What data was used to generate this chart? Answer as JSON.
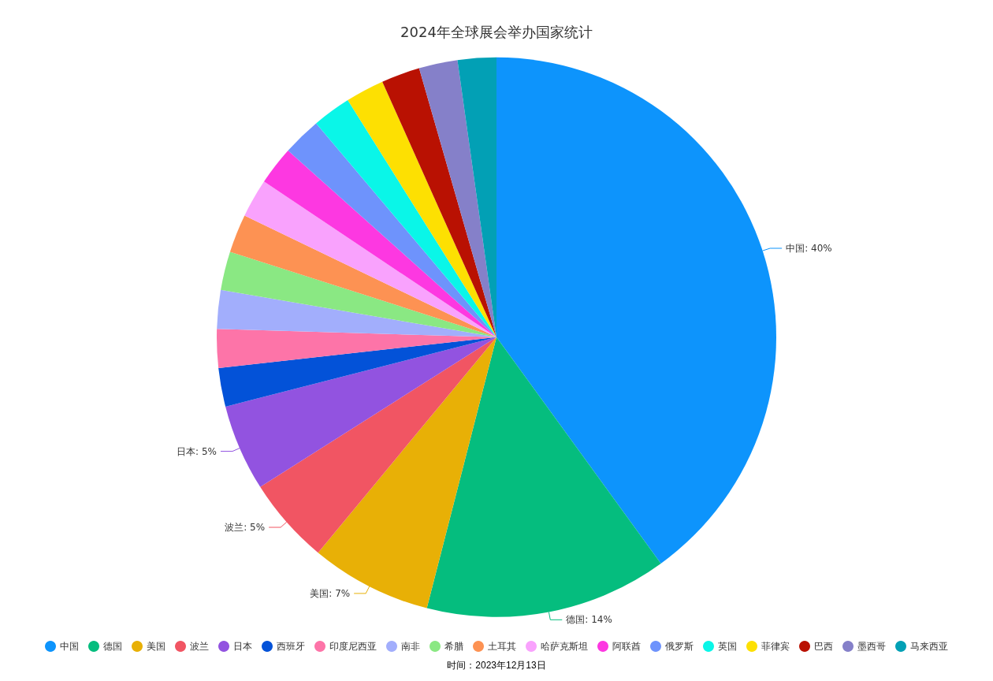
{
  "chart_data": {
    "type": "pie",
    "title": "2024年全球展会举办国家统计",
    "categories": [
      "中国",
      "德国",
      "美国",
      "波兰",
      "日本",
      "西班牙",
      "印度尼西亚",
      "南非",
      "希腊",
      "土耳其",
      "哈萨克斯坦",
      "阿联酋",
      "俄罗斯",
      "英国",
      "菲律宾",
      "巴西",
      "墨西哥",
      "马来西亚"
    ],
    "values": [
      40,
      14,
      7,
      5,
      5,
      2.23,
      2.23,
      2.23,
      2.23,
      2.23,
      2.23,
      2.23,
      2.23,
      2.23,
      2.23,
      2.23,
      2.23,
      2.23
    ],
    "value_labels": [
      "中国: 40%",
      "德国: 14%",
      "美国: 7%",
      "波兰: 5%",
      "日本: 5%",
      null,
      null,
      null,
      null,
      null,
      null,
      null,
      null,
      null,
      null,
      null,
      null,
      null
    ],
    "colors": [
      "#0d94fc",
      "#05bd7e",
      "#e8b006",
      "#f15563",
      "#9253e0",
      "#0352d8",
      "#fd74a8",
      "#a2aefc",
      "#8ae883",
      "#fd9253",
      "#f9a2fd",
      "#fd38e1",
      "#6e93fc",
      "#0af6e8",
      "#fde002",
      "#b91102",
      "#8580c9",
      "#02a0b5"
    ],
    "legend": "bottom",
    "annotations": [
      "时间：2023年12月13日"
    ]
  }
}
